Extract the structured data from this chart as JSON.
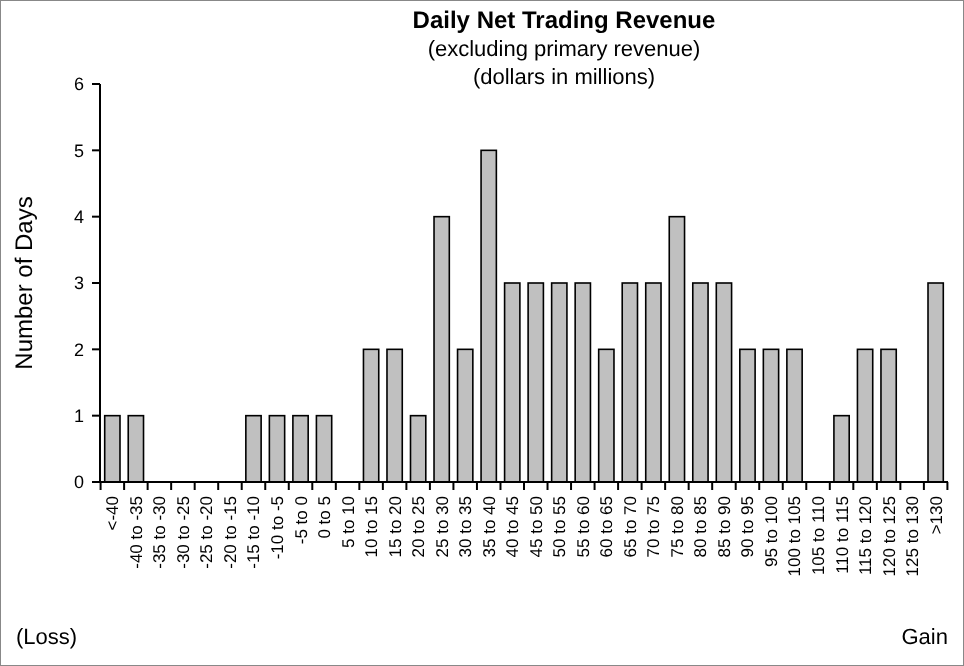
{
  "chart_data": {
    "type": "bar",
    "title": "Daily Net Trading Revenue",
    "subtitle": "(excluding primary revenue)\n(dollars in millions)",
    "ylabel": "Number of Days",
    "categories": [
      "<-40",
      "-40 to -35",
      "-35 to -30",
      "-30 to -25",
      "-25 to -20",
      "-20 to -15",
      "-15 to -10",
      "-10 to -5",
      "-5 to 0",
      "0 to 5",
      "5 to 10",
      "10 to 15",
      "15 to 20",
      "20 to 25",
      "25 to 30",
      "30 to 35",
      "35 to 40",
      "40 to 45",
      "45 to 50",
      "50 to 55",
      "55 to 60",
      "60 to 65",
      "65 to 70",
      "70 to 75",
      "75 to 80",
      "80 to 85",
      "85 to 90",
      "90 to 95",
      "95 to 100",
      "100 to 105",
      "105 to 110",
      "110 to 115",
      "115 to 120",
      "120 to 125",
      "125 to 130",
      ">130"
    ],
    "values": [
      1,
      1,
      0,
      0,
      0,
      0,
      1,
      1,
      1,
      1,
      0,
      2,
      2,
      1,
      4,
      2,
      5,
      3,
      3,
      3,
      3,
      2,
      3,
      3,
      4,
      3,
      3,
      2,
      2,
      2,
      0,
      1,
      2,
      2,
      0,
      3
    ],
    "color": "#c0c0c0",
    "ylim": [
      0,
      6
    ],
    "yticks": [
      0,
      1,
      2,
      3,
      4,
      5,
      6
    ],
    "grid": false,
    "annotations": [
      "(Loss)",
      "Gain"
    ]
  }
}
